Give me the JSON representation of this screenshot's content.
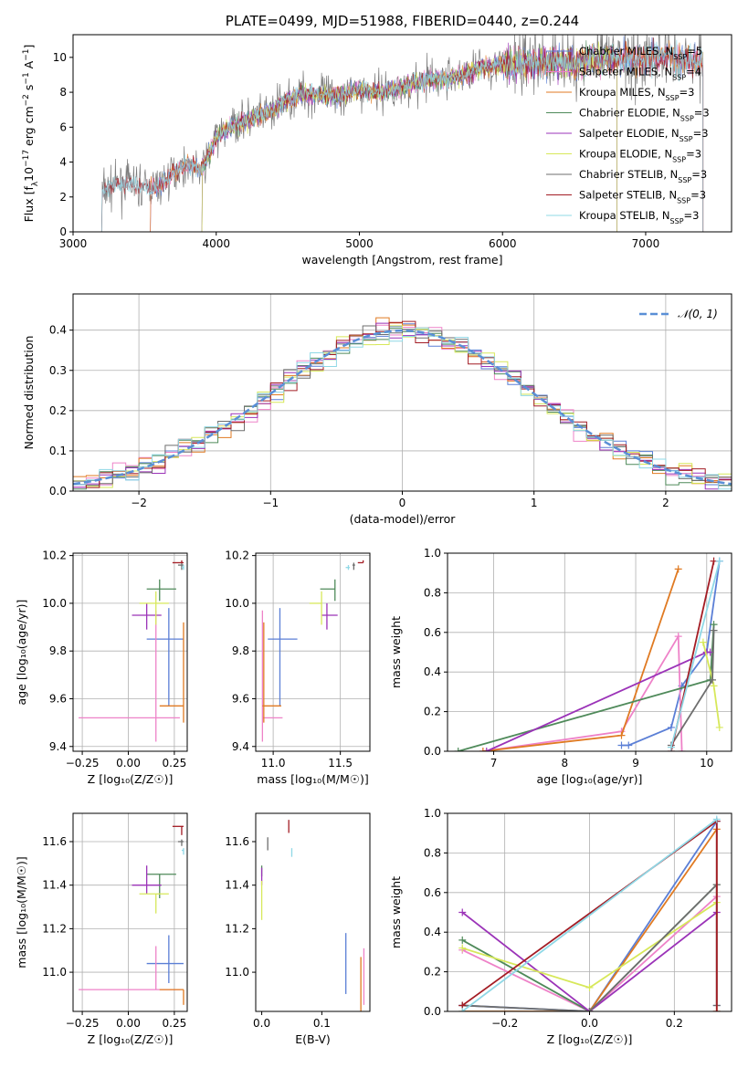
{
  "colors": {
    "Chabrier MILES": "#5b7fd6",
    "Salpeter MILES": "#ee82c8",
    "Kroupa MILES": "#e07a22",
    "Chabrier ELODIE": "#4f8a5a",
    "Salpeter ELODIE": "#9b33b8",
    "Kroupa ELODIE": "#d7e85a",
    "Chabrier STELIB": "#6e6e6e",
    "Salpeter STELIB": "#a31c24",
    "Kroupa STELIB": "#8fd8e6"
  },
  "chart_data": [
    {
      "id": "spectrum",
      "type": "line",
      "title": "PLATE=0499, MJD=51988, FIBERID=0440, z=0.244",
      "xlabel": "wavelength [Angstrom, rest frame]",
      "ylabel": "Flux [fλ10⁻¹⁷ erg cm⁻² s⁻¹ A⁻¹]",
      "xlim": [
        3000,
        7600
      ],
      "ylim": [
        0,
        11.3
      ],
      "xticks": [
        "3000",
        "4000",
        "5000",
        "6000",
        "7000"
      ],
      "yticks": [
        "0",
        "2",
        "4",
        "6",
        "8",
        "10"
      ],
      "legend_position": "top-right",
      "legend": [
        {
          "base": "Chabrier MILES, N",
          "sub": "SSP",
          "tail": "=5"
        },
        {
          "base": "Salpeter MILES, N",
          "sub": "SSP",
          "tail": "=4"
        },
        {
          "base": "Kroupa MILES, N",
          "sub": "SSP",
          "tail": "=3"
        },
        {
          "base": "Chabrier ELODIE, N",
          "sub": "SSP",
          "tail": "=3"
        },
        {
          "base": "Salpeter ELODIE, N",
          "sub": "SSP",
          "tail": "=3"
        },
        {
          "base": "Kroupa ELODIE, N",
          "sub": "SSP",
          "tail": "=3"
        },
        {
          "base": "Chabrier STELIB, N",
          "sub": "SSP",
          "tail": "=3"
        },
        {
          "base": "Salpeter STELIB, N",
          "sub": "SSP",
          "tail": "=3"
        },
        {
          "base": "Kroupa STELIB, N",
          "sub": "SSP",
          "tail": "=3"
        }
      ],
      "continuum": {
        "x": [
          3200,
          3300,
          3400,
          3500,
          3600,
          3700,
          3800,
          3900,
          4000,
          4100,
          4200,
          4300,
          4400,
          4500,
          4600,
          4700,
          4800,
          4900,
          5000,
          5100,
          5200,
          5300,
          5400,
          5500,
          5600,
          5700,
          5800,
          5900,
          6000,
          6100,
          6200,
          6300,
          6400,
          6500,
          6600,
          6700,
          6800,
          6900,
          7000,
          7100,
          7200,
          7300,
          7400
        ],
        "y": [
          2.3,
          2.7,
          2.8,
          2.5,
          2.6,
          3.4,
          3.9,
          3.5,
          5.4,
          6.0,
          6.4,
          6.6,
          7.0,
          7.6,
          7.9,
          7.9,
          7.8,
          7.9,
          8.2,
          8.0,
          8.1,
          8.3,
          8.5,
          8.7,
          8.8,
          8.9,
          9.3,
          9.5,
          9.6,
          9.6,
          9.7,
          9.7,
          9.8,
          9.6,
          9.9,
          9.8,
          10.0,
          10.0,
          9.9,
          10.1,
          10.0,
          9.9,
          9.8
        ]
      },
      "model_start": {
        "Chabrier MILES": 3540,
        "Salpeter MILES": 3540,
        "Kroupa MILES": 3540,
        "Chabrier ELODIE": 3900,
        "Salpeter ELODIE": 3900,
        "Kroupa ELODIE": 3900,
        "Chabrier STELIB": 3200,
        "Salpeter STELIB": 3200,
        "Kroupa STELIB": 3200
      },
      "model_end": {
        "Chabrier MILES": 7400,
        "Salpeter MILES": 7400,
        "Kroupa MILES": 7400,
        "Chabrier ELODIE": 6800,
        "Salpeter ELODIE": 6800,
        "Kroupa ELODIE": 6800,
        "Chabrier STELIB": 7400,
        "Salpeter STELIB": 7400,
        "Kroupa STELIB": 7400
      }
    },
    {
      "id": "residuals",
      "type": "histogram",
      "xlabel": "(data-model)/error",
      "ylabel": "Normed distribution",
      "xlim": [
        -2.5,
        2.5
      ],
      "ylim": [
        0,
        0.49
      ],
      "grid": true,
      "xticks": [
        "−2",
        "−1",
        "0",
        "1",
        "2"
      ],
      "yticks": [
        "0.0",
        "0.1",
        "0.2",
        "0.3",
        "0.4"
      ],
      "legend_position": "top-right",
      "reference_label": "𝒩(0, 1)",
      "bin_width": 0.1
    },
    {
      "id": "age_vs_Z",
      "type": "errorbar",
      "xlabel": "Z [log₁₀(Z/Z☉)]",
      "ylabel": "age  [log₁₀(age/yr)]",
      "xlim": [
        -0.3,
        0.32
      ],
      "ylim": [
        9.38,
        10.21
      ],
      "xticks": [
        "−0.25",
        "0.00",
        "0.25"
      ],
      "yticks": [
        "9.4",
        "9.6",
        "9.8",
        "10.0",
        "10.2"
      ],
      "grid": true,
      "points": [
        {
          "model": "Chabrier MILES",
          "x": 0.22,
          "y": 9.85,
          "xerr": [
            0.12,
            0.08
          ],
          "yerr": [
            0.28,
            0.13
          ]
        },
        {
          "model": "Salpeter MILES",
          "x": 0.15,
          "y": 9.52,
          "xerr": [
            0.42,
            0.13
          ],
          "yerr": [
            0.1,
            0.45
          ]
        },
        {
          "model": "Kroupa MILES",
          "x": 0.3,
          "y": 9.57,
          "xerr": [
            0.13,
            0.0
          ],
          "yerr": [
            0.07,
            0.35
          ]
        },
        {
          "model": "Chabrier ELODIE",
          "x": 0.17,
          "y": 10.06,
          "xerr": [
            0.07,
            0.09
          ],
          "yerr": [
            0.05,
            0.04
          ]
        },
        {
          "model": "Salpeter ELODIE",
          "x": 0.1,
          "y": 9.95,
          "xerr": [
            0.08,
            0.08
          ],
          "yerr": [
            0.06,
            0.05
          ]
        },
        {
          "model": "Kroupa ELODIE",
          "x": 0.15,
          "y": 10.0,
          "xerr": [
            0.09,
            0.07
          ],
          "yerr": [
            0.09,
            0.05
          ]
        },
        {
          "model": "Chabrier STELIB",
          "x": 0.29,
          "y": 10.16,
          "xerr": [
            0.02,
            0.01
          ],
          "yerr": [
            0.02,
            0.01
          ]
        },
        {
          "model": "Salpeter STELIB",
          "x": 0.29,
          "y": 10.17,
          "xerr": [
            0.05,
            0.01
          ],
          "yerr": [
            0.0,
            0.01
          ]
        },
        {
          "model": "Kroupa STELIB",
          "x": 0.3,
          "y": 10.15,
          "xerr": [
            0.01,
            0.0
          ],
          "yerr": [
            0.01,
            0.01
          ]
        }
      ]
    },
    {
      "id": "age_vs_mass",
      "type": "errorbar",
      "xlabel": "mass [log₁₀(M/M☉)]",
      "ylabel": "",
      "xlim": [
        10.87,
        11.72
      ],
      "ylim": [
        9.38,
        10.21
      ],
      "xticks": [
        "11.0",
        "11.5"
      ],
      "yticks": [
        "9.4",
        "9.6",
        "9.8",
        "10.0",
        "10.2"
      ],
      "grid": true,
      "points": [
        {
          "model": "Chabrier MILES",
          "x": 11.05,
          "y": 9.85,
          "xerr": [
            0.09,
            0.13
          ],
          "yerr": [
            0.28,
            0.13
          ]
        },
        {
          "model": "Salpeter MILES",
          "x": 10.92,
          "y": 9.52,
          "xerr": [
            0.0,
            0.15
          ],
          "yerr": [
            0.1,
            0.45
          ]
        },
        {
          "model": "Kroupa MILES",
          "x": 10.93,
          "y": 9.57,
          "xerr": [
            0.01,
            0.13
          ],
          "yerr": [
            0.07,
            0.35
          ]
        },
        {
          "model": "Chabrier ELODIE",
          "x": 11.46,
          "y": 10.06,
          "xerr": [
            0.11,
            0.0
          ],
          "yerr": [
            0.05,
            0.04
          ]
        },
        {
          "model": "Salpeter ELODIE",
          "x": 11.4,
          "y": 9.95,
          "xerr": [
            0.04,
            0.08
          ],
          "yerr": [
            0.06,
            0.05
          ]
        },
        {
          "model": "Kroupa ELODIE",
          "x": 11.36,
          "y": 10.0,
          "xerr": [
            0.09,
            0.0
          ],
          "yerr": [
            0.09,
            0.05
          ]
        },
        {
          "model": "Chabrier STELIB",
          "x": 11.6,
          "y": 10.16,
          "xerr": [
            0.01,
            0.01
          ],
          "yerr": [
            0.02,
            0.01
          ]
        },
        {
          "model": "Salpeter STELIB",
          "x": 11.67,
          "y": 10.17,
          "xerr": [
            0.04,
            0.0
          ],
          "yerr": [
            0.0,
            0.01
          ]
        },
        {
          "model": "Kroupa STELIB",
          "x": 11.56,
          "y": 10.15,
          "xerr": [
            0.02,
            0.01
          ],
          "yerr": [
            0.01,
            0.01
          ]
        }
      ]
    },
    {
      "id": "weight_vs_age",
      "type": "line",
      "xlabel": "age  [log₁₀(age/yr)]",
      "ylabel": "mass weight",
      "xlim": [
        6.35,
        10.35
      ],
      "ylim": [
        0,
        1
      ],
      "xticks": [
        "7",
        "8",
        "9",
        "10"
      ],
      "yticks": [
        "0.0",
        "0.2",
        "0.4",
        "0.6",
        "0.8",
        "1.0"
      ],
      "grid": true,
      "series": [
        {
          "model": "Chabrier MILES",
          "x": [
            8.8,
            8.9,
            9.5,
            9.65,
            10.0,
            10.18
          ],
          "y": [
            0.03,
            0.03,
            0.12,
            0.33,
            0.5,
            0.96
          ]
        },
        {
          "model": "Salpeter MILES",
          "x": [
            6.85,
            8.8,
            9.6,
            9.65
          ],
          "y": [
            0.0,
            0.1,
            0.58,
            0.0
          ]
        },
        {
          "model": "Kroupa MILES",
          "x": [
            6.85,
            8.8,
            9.6
          ],
          "y": [
            0.0,
            0.08,
            0.92
          ]
        },
        {
          "model": "Chabrier ELODIE",
          "x": [
            6.5,
            10.05,
            10.1
          ],
          "y": [
            0.0,
            0.36,
            0.64
          ]
        },
        {
          "model": "Salpeter ELODIE",
          "x": [
            6.9,
            10.0,
            10.05
          ],
          "y": [
            0.0,
            0.5,
            0.5
          ]
        },
        {
          "model": "Kroupa ELODIE",
          "x": [
            9.95,
            10.1,
            10.18
          ],
          "y": [
            0.55,
            0.33,
            0.12
          ]
        },
        {
          "model": "Chabrier STELIB",
          "x": [
            9.5,
            10.08,
            10.1
          ],
          "y": [
            0.03,
            0.36,
            0.61
          ]
        },
        {
          "model": "Salpeter STELIB",
          "x": [
            9.5,
            10.1
          ],
          "y": [
            0.0,
            0.96
          ]
        },
        {
          "model": "Kroupa STELIB",
          "x": [
            9.5,
            10.18
          ],
          "y": [
            0.02,
            0.96
          ]
        }
      ]
    },
    {
      "id": "mass_vs_Z",
      "type": "errorbar",
      "xlabel": "Z [log₁₀(Z/Z☉)]",
      "ylabel": "mass [log₁₀(M/M☉)]",
      "xlim": [
        -0.3,
        0.32
      ],
      "ylim": [
        10.82,
        11.73
      ],
      "xticks": [
        "−0.25",
        "0.00",
        "0.25"
      ],
      "yticks": [
        "11.0",
        "11.2",
        "11.4",
        "11.6"
      ],
      "grid": true,
      "points": [
        {
          "model": "Chabrier MILES",
          "x": 0.22,
          "y": 11.04,
          "xerr": [
            0.12,
            0.08
          ],
          "yerr": [
            0.09,
            0.13
          ]
        },
        {
          "model": "Salpeter MILES",
          "x": 0.15,
          "y": 10.92,
          "xerr": [
            0.42,
            0.13
          ],
          "yerr": [
            0.0,
            0.2
          ]
        },
        {
          "model": "Kroupa MILES",
          "x": 0.3,
          "y": 10.92,
          "xerr": [
            0.13,
            0.0
          ],
          "yerr": [
            0.07,
            0.0
          ]
        },
        {
          "model": "Chabrier ELODIE",
          "x": 0.17,
          "y": 11.45,
          "xerr": [
            0.07,
            0.09
          ],
          "yerr": [
            0.11,
            0.0
          ]
        },
        {
          "model": "Salpeter ELODIE",
          "x": 0.1,
          "y": 11.4,
          "xerr": [
            0.08,
            0.08
          ],
          "yerr": [
            0.04,
            0.09
          ]
        },
        {
          "model": "Kroupa ELODIE",
          "x": 0.15,
          "y": 11.36,
          "xerr": [
            0.09,
            0.07
          ],
          "yerr": [
            0.09,
            0.0
          ]
        },
        {
          "model": "Chabrier STELIB",
          "x": 0.29,
          "y": 11.6,
          "xerr": [
            0.02,
            0.01
          ],
          "yerr": [
            0.02,
            0.01
          ]
        },
        {
          "model": "Salpeter STELIB",
          "x": 0.29,
          "y": 11.67,
          "xerr": [
            0.05,
            0.01
          ],
          "yerr": [
            0.04,
            0.0
          ]
        },
        {
          "model": "Kroupa STELIB",
          "x": 0.3,
          "y": 11.56,
          "xerr": [
            0.01,
            0.0
          ],
          "yerr": [
            0.02,
            0.01
          ]
        }
      ]
    },
    {
      "id": "mass_vs_EBV",
      "type": "errorbar",
      "xlabel": "E(B-V)",
      "ylabel": "",
      "xlim": [
        -0.01,
        0.18
      ],
      "ylim": [
        10.82,
        11.73
      ],
      "xticks": [
        "0.0",
        "0.1"
      ],
      "yticks": [
        "11.0",
        "11.2",
        "11.4",
        "11.6"
      ],
      "grid": false,
      "points": [
        {
          "model": "Chabrier MILES",
          "x": 0.14,
          "y": 11.04,
          "xerr": [
            0,
            0
          ],
          "yerr": [
            0.14,
            0.14
          ]
        },
        {
          "model": "Salpeter MILES",
          "x": 0.17,
          "y": 10.97,
          "xerr": [
            0,
            0
          ],
          "yerr": [
            0.12,
            0.14
          ]
        },
        {
          "model": "Kroupa MILES",
          "x": 0.165,
          "y": 10.9,
          "xerr": [
            0,
            0
          ],
          "yerr": [
            0.08,
            0.17
          ]
        },
        {
          "model": "Chabrier ELODIE",
          "x": 0.0,
          "y": 11.47,
          "xerr": [
            0,
            0
          ],
          "yerr": [
            0.03,
            0.02
          ]
        },
        {
          "model": "Salpeter ELODIE",
          "x": 0.0,
          "y": 11.44,
          "xerr": [
            0,
            0
          ],
          "yerr": [
            0.04,
            0.04
          ]
        },
        {
          "model": "Kroupa ELODIE",
          "x": 0.0,
          "y": 11.33,
          "xerr": [
            0,
            0
          ],
          "yerr": [
            0.09,
            0.09
          ]
        },
        {
          "model": "Chabrier STELIB",
          "x": 0.01,
          "y": 11.59,
          "xerr": [
            0,
            0
          ],
          "yerr": [
            0.03,
            0.03
          ]
        },
        {
          "model": "Salpeter STELIB",
          "x": 0.045,
          "y": 11.67,
          "xerr": [
            0,
            0
          ],
          "yerr": [
            0.03,
            0.03
          ]
        },
        {
          "model": "Kroupa STELIB",
          "x": 0.05,
          "y": 11.55,
          "xerr": [
            0,
            0
          ],
          "yerr": [
            0.02,
            0.02
          ]
        }
      ]
    },
    {
      "id": "weight_vs_Z",
      "type": "line",
      "xlabel": "Z [log₁₀(Z/Z☉)]",
      "ylabel": "mass weight",
      "xlim": [
        -0.335,
        0.335
      ],
      "ylim": [
        0,
        1
      ],
      "xticks": [
        "−0.2",
        "0.0",
        "0.2"
      ],
      "yticks": [
        "0.0",
        "0.2",
        "0.4",
        "0.6",
        "0.8",
        "1.0"
      ],
      "grid": true,
      "series": [
        {
          "model": "Chabrier MILES",
          "x": [
            -0.3,
            0.0,
            0.3,
            0.3
          ],
          "y": [
            0.03,
            0.0,
            0.96,
            0.03
          ]
        },
        {
          "model": "Salpeter MILES",
          "x": [
            -0.3,
            0.0,
            0.3
          ],
          "y": [
            0.31,
            0.0,
            0.58
          ]
        },
        {
          "model": "Kroupa MILES",
          "x": [
            -0.3,
            0.0,
            0.3,
            0.3
          ],
          "y": [
            0.0,
            0.0,
            0.92,
            0.0
          ]
        },
        {
          "model": "Chabrier ELODIE",
          "x": [
            -0.3,
            0.0,
            0.3
          ],
          "y": [
            0.36,
            0.0,
            0.64
          ]
        },
        {
          "model": "Salpeter ELODIE",
          "x": [
            -0.3,
            0.0,
            0.3
          ],
          "y": [
            0.5,
            0.0,
            0.5
          ]
        },
        {
          "model": "Kroupa ELODIE",
          "x": [
            -0.3,
            0.0,
            0.3
          ],
          "y": [
            0.32,
            0.12,
            0.55
          ]
        },
        {
          "model": "Chabrier STELIB",
          "x": [
            -0.3,
            0.0,
            0.3,
            0.3
          ],
          "y": [
            0.03,
            0.0,
            0.64,
            0.03
          ]
        },
        {
          "model": "Salpeter STELIB",
          "x": [
            -0.3,
            0.3,
            0.3
          ],
          "y": [
            0.03,
            0.96,
            0.0
          ]
        },
        {
          "model": "Kroupa STELIB",
          "x": [
            -0.3,
            0.3
          ],
          "y": [
            0.0,
            0.97
          ]
        }
      ]
    }
  ]
}
